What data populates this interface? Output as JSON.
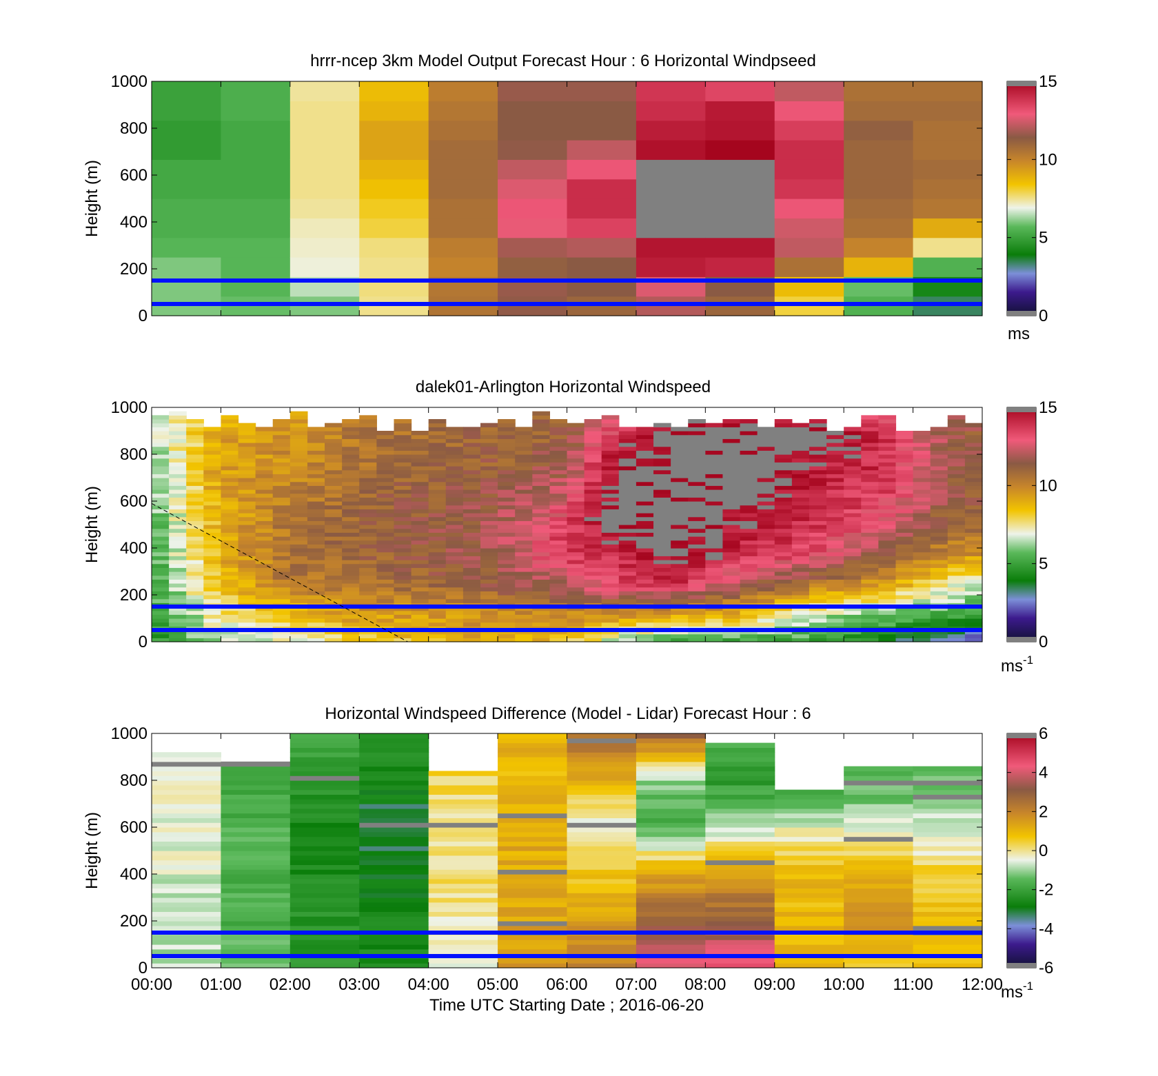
{
  "chart_data": [
    {
      "type": "heatmap",
      "title": "hrrr-ncep 3km Model Output   Forecast Hour : 6 Horizontal Windpseed",
      "ylabel": "Height (m)",
      "xlabel": "",
      "ylim": [
        0,
        1000
      ],
      "yticks": [
        0,
        200,
        400,
        600,
        800,
        1000
      ],
      "xticks": [],
      "colorbar": {
        "min": 0,
        "max": 15,
        "ticks": [
          0,
          5,
          10,
          15
        ],
        "unit": "ms",
        "sup": ""
      },
      "reference_lines_m": [
        150,
        50
      ],
      "hour_columns": [
        [
          6.0,
          6.0,
          6.0,
          5.6,
          5.4,
          5.4,
          5.2,
          5.2,
          4.8,
          4.8,
          5.0,
          5.0
        ],
        [
          5.8,
          5.6,
          5.6,
          5.6,
          5.4,
          5.4,
          5.2,
          5.2,
          5.2,
          5.2,
          5.4,
          5.4
        ],
        [
          6.0,
          6.5,
          7.0,
          7.1,
          7.2,
          7.4,
          7.5,
          7.5,
          7.5,
          7.5,
          7.5,
          7.4
        ],
        [
          7.5,
          7.6,
          7.5,
          7.6,
          8.0,
          8.2,
          8.5,
          8.8,
          9.2,
          9.2,
          8.8,
          8.6
        ],
        [
          10.5,
          10.4,
          10.0,
          10.2,
          10.6,
          10.6,
          10.8,
          10.8,
          10.8,
          10.6,
          10.4,
          10.2
        ],
        [
          11.5,
          11.6,
          11.2,
          11.8,
          12.8,
          13.0,
          12.6,
          12.2,
          11.5,
          11.4,
          11.4,
          11.6
        ],
        [
          11.0,
          11.4,
          11.4,
          12.0,
          13.5,
          14.0,
          14.0,
          13.0,
          12.2,
          11.4,
          11.4,
          11.6
        ],
        [
          12.0,
          12.6,
          14.4,
          14.6,
          15.5,
          15.5,
          15.5,
          15.5,
          14.7,
          14.4,
          14.0,
          13.8
        ],
        [
          11.0,
          11.4,
          14.2,
          14.6,
          15.5,
          15.5,
          15.5,
          15.5,
          15.0,
          14.6,
          14.5,
          13.4
        ],
        [
          8.0,
          8.6,
          10.6,
          12.2,
          12.4,
          13.0,
          13.8,
          14.0,
          14.0,
          13.6,
          13.0,
          12.2
        ],
        [
          5.5,
          5.8,
          8.8,
          10.0,
          10.6,
          10.8,
          11.0,
          11.0,
          11.0,
          11.2,
          10.8,
          10.6
        ],
        [
          3.4,
          4.2,
          5.5,
          7.5,
          9.0,
          10.4,
          10.6,
          10.8,
          10.6,
          10.6,
          10.8,
          10.6
        ]
      ]
    },
    {
      "type": "heatmap",
      "title": "dalek01-Arlington  Horizontal Windspeed",
      "ylabel": "Height (m)",
      "xlabel": "",
      "ylim": [
        0,
        1000
      ],
      "yticks": [
        0,
        200,
        400,
        600,
        800,
        1000
      ],
      "xticks": [],
      "colorbar": {
        "min": 0,
        "max": 15,
        "ticks": [
          0,
          5,
          10,
          15
        ],
        "unit": "ms",
        "sup": "-1"
      },
      "reference_lines_m": [
        150,
        50
      ],
      "timeline_hours": [
        0,
        1,
        2,
        3,
        4,
        5,
        6,
        6.8,
        7.6,
        8.5,
        9.5,
        10.5,
        11.5,
        12
      ],
      "timeline_profiles": [
        [
          4.5,
          5.0,
          5.2,
          5.2,
          5.4,
          5.8,
          6.0,
          6.2,
          5.8
        ],
        [
          6.5,
          7.5,
          8.5,
          9.0,
          9.0,
          9.2,
          9.4,
          9.2,
          9.0
        ],
        [
          7.0,
          8.5,
          10.5,
          10.5,
          10.5,
          10.0,
          9.8,
          9.6,
          9.4
        ],
        [
          8.0,
          9.5,
          10.5,
          11.0,
          11.0,
          11.0,
          10.5,
          10.4,
          10.2
        ],
        [
          8.5,
          9.5,
          11.0,
          11.4,
          11.4,
          11.2,
          11.0,
          10.8,
          10.5
        ],
        [
          9.0,
          10.0,
          11.4,
          11.8,
          11.8,
          11.6,
          11.2,
          11.0,
          11.0
        ],
        [
          8.5,
          10.0,
          12.0,
          13.8,
          13.5,
          12.5,
          11.6,
          11.2,
          11.0
        ],
        [
          6.0,
          10.0,
          13.6,
          14.2,
          15.5,
          15.5,
          15.5,
          14.0,
          12.5
        ],
        [
          5.0,
          9.5,
          13.8,
          15.5,
          15.5,
          15.5,
          15.5,
          15.5,
          14.2
        ],
        [
          5.0,
          9.0,
          12.0,
          14.0,
          14.6,
          15.5,
          15.5,
          15.5,
          14.5
        ],
        [
          5.0,
          7.0,
          10.6,
          13.4,
          14.0,
          14.2,
          14.6,
          15.5,
          14.2
        ],
        [
          4.0,
          6.0,
          9.6,
          11.4,
          12.8,
          13.6,
          14.0,
          14.0,
          13.0
        ],
        [
          2.5,
          5.5,
          7.5,
          10.0,
          11.0,
          11.5,
          11.6,
          11.6,
          11.4
        ],
        [
          2.0,
          5.0,
          7.0,
          9.5,
          10.8,
          11.2,
          11.4,
          11.4,
          11.2
        ]
      ],
      "dashed_line": [
        [
          0,
          590
        ],
        [
          3.7,
          0
        ]
      ]
    },
    {
      "type": "heatmap",
      "title": "Horizontal Windspeed Difference (Model - Lidar) Forecast Hour : 6",
      "ylabel": "Height (m)",
      "xlabel": "Time UTC  Starting Date ; 2016-06-20",
      "ylim": [
        0,
        1000
      ],
      "yticks": [
        0,
        200,
        400,
        600,
        800,
        1000
      ],
      "xticks": [
        "00:00",
        "01:00",
        "02:00",
        "03:00",
        "04:00",
        "05:00",
        "06:00",
        "07:00",
        "08:00",
        "09:00",
        "10:00",
        "11:00",
        "12:00"
      ],
      "colorbar": {
        "min": -6,
        "max": 6,
        "ticks": [
          -6,
          -4,
          -2,
          0,
          2,
          4,
          6
        ],
        "unit": "ms",
        "sup": "-1"
      },
      "reference_lines_m": [
        150,
        50
      ],
      "column_tops_m": [
        910,
        880,
        1000,
        1000,
        840,
        1000,
        1000,
        1000,
        960,
        760,
        860,
        860
      ],
      "column_profiles": [
        [
          -0.8,
          -0.8,
          -0.6,
          -0.5,
          -0.4,
          -0.3
        ],
        [
          -1.5,
          -1.6,
          -1.6,
          -1.7,
          -1.8,
          -2.0
        ],
        [
          -2.0,
          -2.4,
          -2.6,
          -2.6,
          -2.2,
          -1.6
        ],
        [
          -2.4,
          -2.6,
          -3.0,
          -3.4,
          -2.6,
          -2.5
        ],
        [
          -0.6,
          -0.2,
          0.2,
          0.0,
          0.3,
          0.2
        ],
        [
          1.6,
          1.4,
          1.2,
          1.2,
          1.0,
          1.0
        ],
        [
          2.0,
          1.6,
          0.6,
          -0.5,
          1.2,
          2.5
        ],
        [
          4.2,
          3.0,
          1.2,
          -1.6,
          -1.2,
          3.0
        ],
        [
          4.6,
          3.0,
          1.4,
          -0.8,
          -2.2,
          -1.8
        ],
        [
          0.9,
          0.9,
          1.0,
          -0.5,
          -2.3,
          -2.5
        ],
        [
          0.5,
          1.6,
          1.0,
          -0.6,
          -1.6,
          -2.6
        ],
        [
          0.8,
          0.8,
          0.5,
          -0.8,
          -1.2,
          -1.4
        ]
      ]
    }
  ]
}
